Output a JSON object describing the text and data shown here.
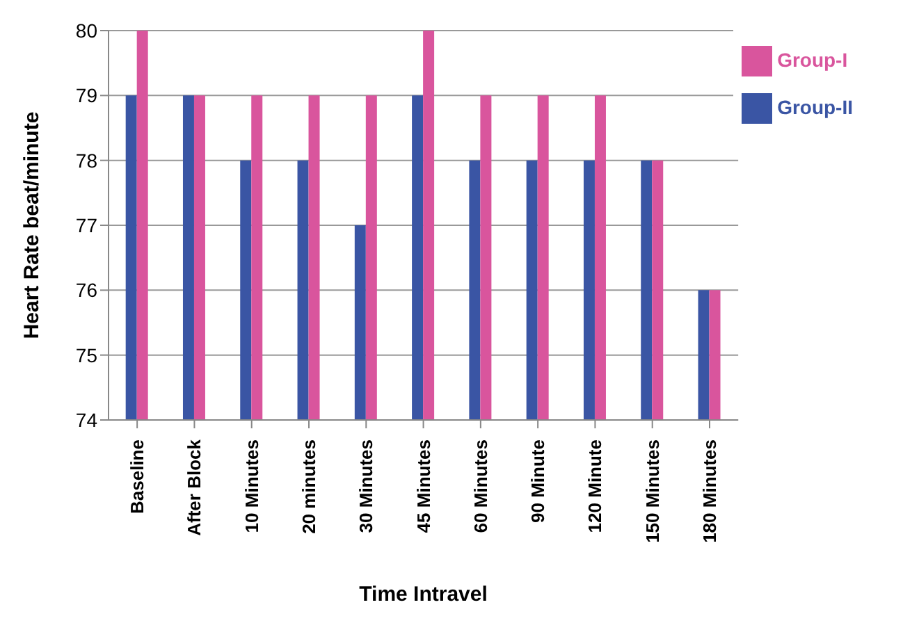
{
  "chart_data": {
    "type": "bar",
    "xlabel": "Time Intravel",
    "ylabel": "Heart Rate beat/minute",
    "categories": [
      "Baseline",
      "After Block",
      "10 Minutes",
      "20 minutes",
      "30 Minutes",
      "45 Minutes",
      "60 Minutes",
      "90 Minute",
      "120 Minute",
      "150 Minutes",
      "180 Minutes"
    ],
    "series": [
      {
        "name": "Group-II",
        "color": "#3a55a4",
        "values": [
          79,
          79,
          78,
          78,
          77,
          79,
          78,
          78,
          78,
          78,
          76
        ]
      },
      {
        "name": "Group-I",
        "color": "#d9559d",
        "values": [
          80,
          79,
          79,
          79,
          79,
          80,
          79,
          79,
          79,
          78,
          76
        ]
      }
    ],
    "ylim": [
      74,
      80
    ],
    "yticks": [
      74,
      75,
      76,
      77,
      78,
      79,
      80
    ],
    "grid": "y",
    "legend": "top right"
  }
}
